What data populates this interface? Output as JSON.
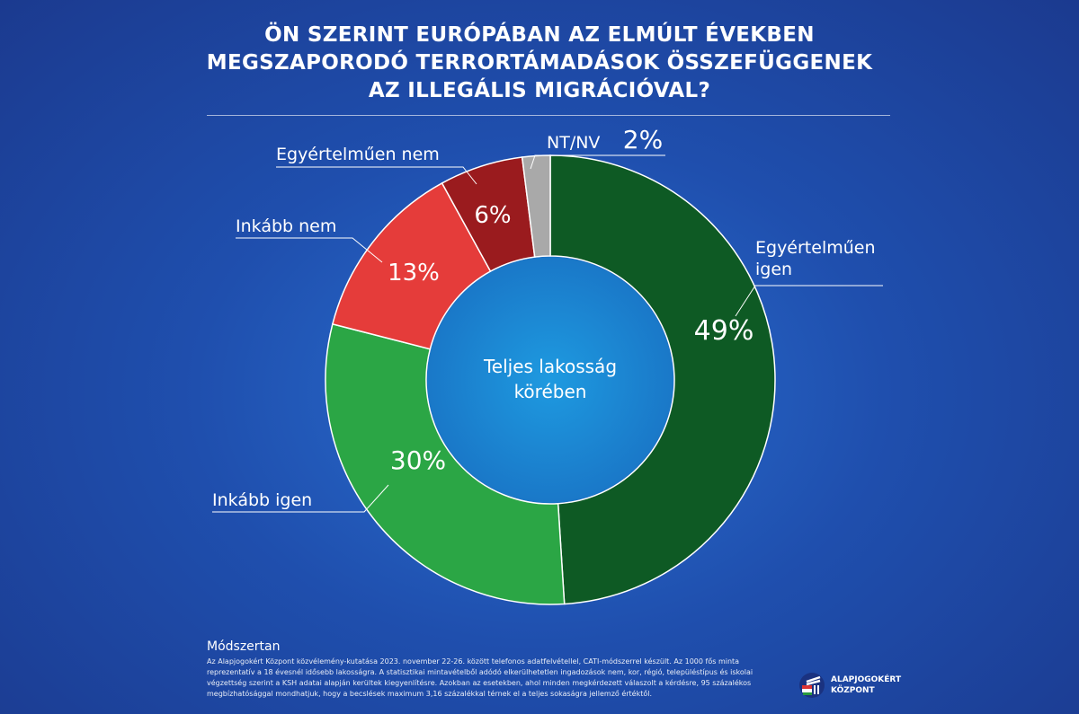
{
  "title_lines": [
    "ÖN SZERINT EURÓPÁBAN AZ ELMÚLT ÉVEKBEN",
    "MEGSZAPORODÓ TERRORTÁMADÁSOK ÖSSZEFÜGGENEK",
    "AZ ILLEGÁLIS MIGRÁCIÓVAL?"
  ],
  "chart_data": {
    "type": "pie",
    "title": "ÖN SZERINT EURÓPÁBAN AZ ELMÚLT ÉVEKBEN MEGSZAPORODÓ TERRORTÁMADÁSOK ÖSSZEFÜGGENEK AZ ILLEGÁLIS MIGRÁCIÓVAL?",
    "center_label": [
      "Teljes lakosság",
      "körében"
    ],
    "slices": [
      {
        "label": [
          "Egyértelműen",
          "igen"
        ],
        "value": 49,
        "display": "49%",
        "color": "#0e5a24"
      },
      {
        "label": [
          "Inkább igen"
        ],
        "value": 30,
        "display": "30%",
        "color": "#2ba645"
      },
      {
        "label": [
          "Inkább nem"
        ],
        "value": 13,
        "display": "13%",
        "color": "#e53c3a"
      },
      {
        "label": [
          "Egyértelműen nem"
        ],
        "value": 6,
        "display": "6%",
        "color": "#9a1b1e"
      },
      {
        "label": [
          "NT/NV"
        ],
        "value": 2,
        "display": "2%",
        "color": "#a9a9a9"
      }
    ]
  },
  "method": {
    "heading": "Módszertan",
    "lines": [
      "Az Alapjogokért Központ közvélemény-kutatása 2023. november 22-26. között telefonos adatfelvétellel, CATI-módszerrel készült. Az 1000 fős minta",
      "reprezentatív a 18 évesnél idősebb lakosságra. A statisztikai mintavételből adódó elkerülhetetlen ingadozások nem, kor, régió, településtípus és iskolai",
      "végzettség szerint a KSH adatai alapján kerültek kiegyenlítésre. Azokban az esetekben, ahol minden megkérdezett válaszolt a kérdésre, 95 százalékos",
      "megbízhatósággal mondhatjuk, hogy a becslések maximum 3,16 százalékkal térnek el a teljes sokaságra jellemző értéktől."
    ]
  },
  "logo": {
    "line1": "ALAPJOGOKÉRT",
    "line2": "KÖZPONT"
  }
}
